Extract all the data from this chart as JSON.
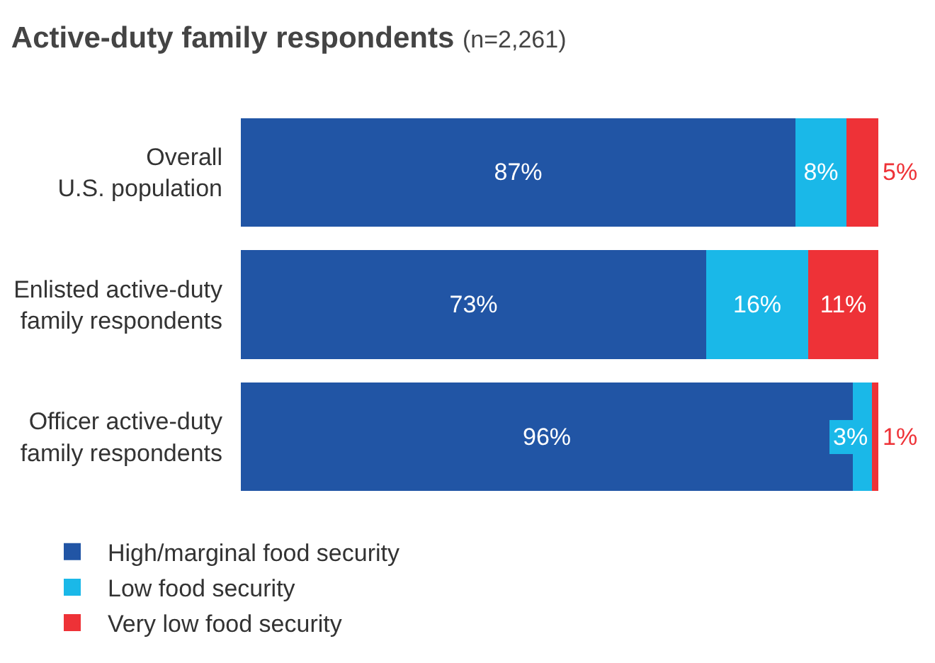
{
  "chart_data": {
    "type": "bar",
    "orientation": "horizontal",
    "stacked": true,
    "title": "Active-duty family respondents",
    "subtitle": "(n=2,261)",
    "categories": [
      "Overall\nU.S. population",
      "Enlisted active-duty\nfamily respondents",
      "Officer active-duty\nfamily respondents"
    ],
    "series": [
      {
        "name": "High/marginal food security",
        "color": "#2155a5",
        "values": [
          87,
          73,
          96
        ],
        "value_labels": [
          "87%",
          "73%",
          "96%"
        ]
      },
      {
        "name": "Low food security",
        "color": "#1ab8e8",
        "values": [
          8,
          16,
          3
        ],
        "value_labels": [
          "8%",
          "16%",
          "3%"
        ]
      },
      {
        "name": "Very low food security",
        "color": "#ee3237",
        "values": [
          5,
          11,
          1
        ],
        "value_labels": [
          "5%",
          "11%",
          "1%"
        ]
      }
    ],
    "xlim": [
      0,
      100
    ],
    "tick_labels": "y",
    "grid": false,
    "legend": "bottom"
  }
}
